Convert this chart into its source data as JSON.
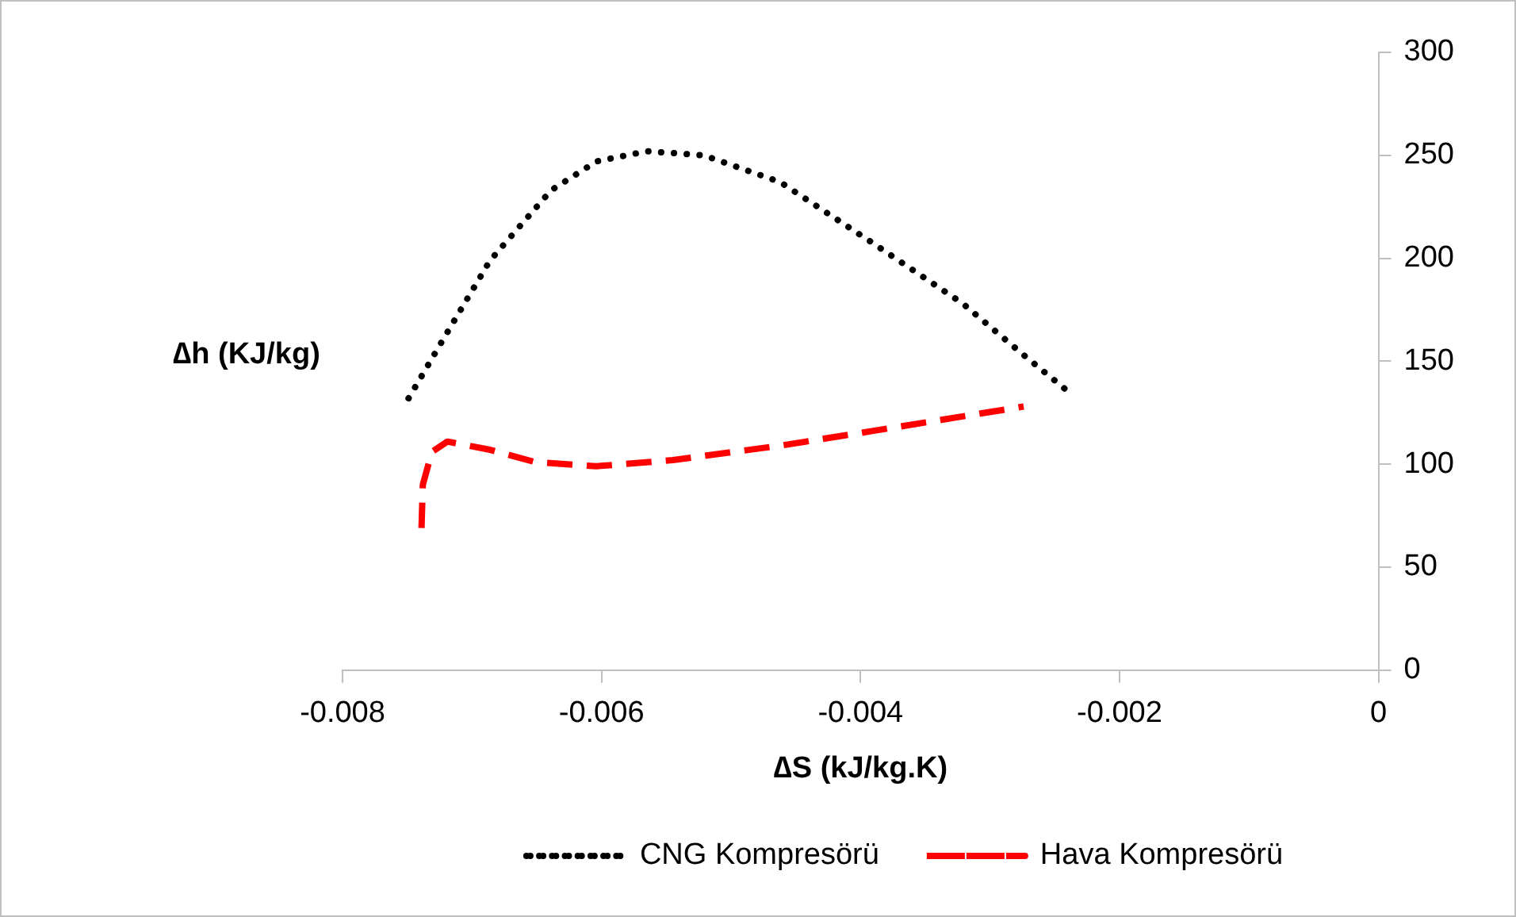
{
  "chart_data": {
    "type": "line",
    "xlabel": "∆S (kJ/kg.K)",
    "ylabel": "∆h (KJ/kg)",
    "xlim": [
      -0.008,
      0
    ],
    "xticks": [
      -0.008,
      -0.006,
      -0.004,
      -0.002,
      0
    ],
    "ylim": [
      0,
      300
    ],
    "yticks": [
      0,
      50,
      100,
      150,
      200,
      250,
      300
    ],
    "grid": false,
    "legend": "bottom",
    "marker": "none",
    "series": [
      {
        "name": "CNG Kompresörü",
        "color": "#000000",
        "line_style": "dotted",
        "x": [
          -0.00749,
          -0.00721,
          -0.00686,
          -0.00639,
          -0.00604,
          -0.00565,
          -0.00521,
          -0.00462,
          -0.00392,
          -0.00321,
          -0.00274,
          -0.00241
        ],
        "values": [
          132,
          162,
          199,
          233,
          247,
          252,
          250,
          237,
          208,
          178,
          153,
          136
        ]
      },
      {
        "name": "Hava Kompresörü",
        "color": "#ff0000",
        "line_style": "dashed",
        "x": [
          -0.00739,
          -0.00738,
          -0.00731,
          -0.00719,
          -0.00686,
          -0.00651,
          -0.00604,
          -0.00545,
          -0.00462,
          -0.00392,
          -0.00274
        ],
        "values": [
          69,
          90,
          106,
          111,
          107,
          101,
          99,
          102,
          109,
          116,
          128
        ]
      }
    ]
  }
}
